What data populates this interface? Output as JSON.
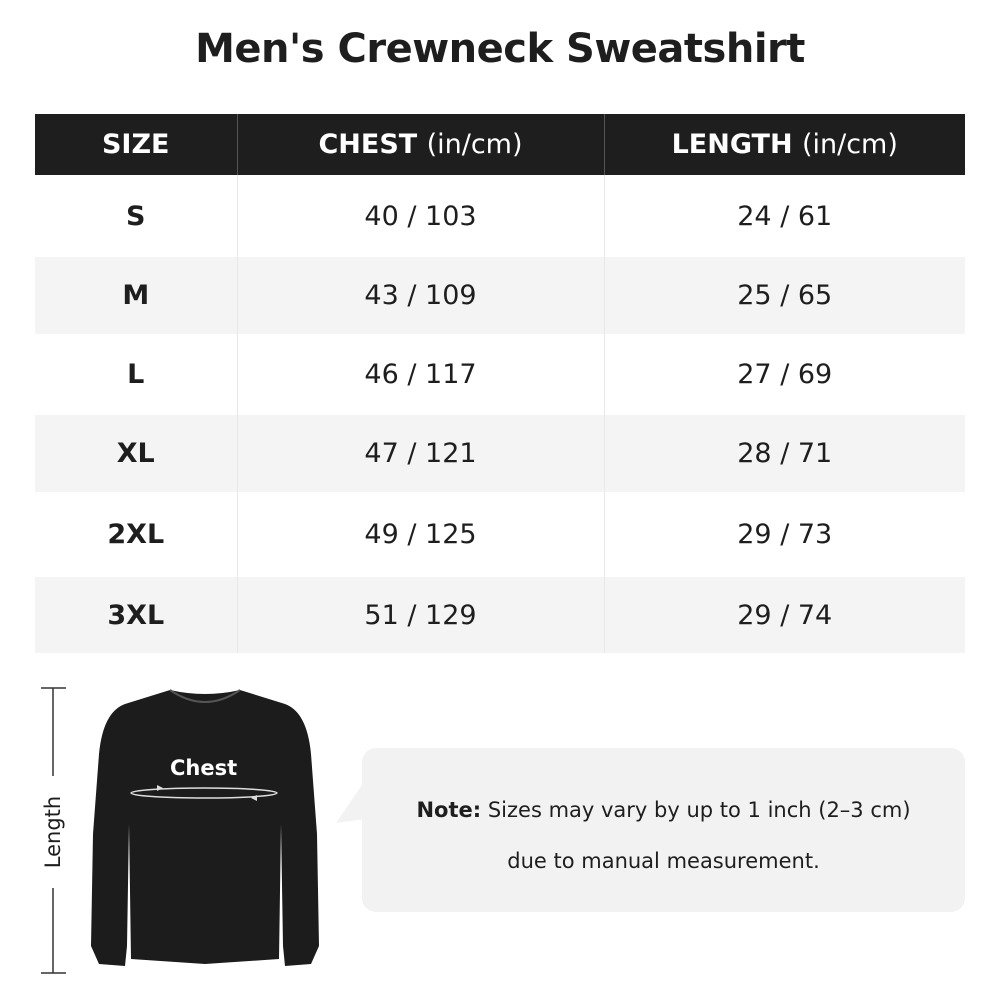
{
  "title": "Men's Crewneck Sweatshirt",
  "table": {
    "headers": [
      {
        "main": "SIZE",
        "unit": ""
      },
      {
        "main": "CHEST",
        "unit": "(in/cm)"
      },
      {
        "main": "LENGTH",
        "unit": "(in/cm)"
      }
    ],
    "rows": [
      {
        "size": "S",
        "chest": "40 / 103",
        "length": "24 / 61"
      },
      {
        "size": "M",
        "chest": "43 / 109",
        "length": "25 / 65"
      },
      {
        "size": "L",
        "chest": "46 / 117",
        "length": "27 / 69"
      },
      {
        "size": "XL",
        "chest": "47 / 121",
        "length": "28 / 71"
      },
      {
        "size": "2XL",
        "chest": "49 / 125",
        "length": "29 / 73"
      },
      {
        "size": "3XL",
        "chest": "51 / 129",
        "length": "29 / 74"
      }
    ]
  },
  "diagram": {
    "length_label": "Length",
    "chest_label": "Chest",
    "shirt_color": "#1c1c1c"
  },
  "note": {
    "label": "Note:",
    "line1": "Sizes may vary by up to 1 inch (2–3 cm)",
    "line2": "due to manual measurement."
  }
}
